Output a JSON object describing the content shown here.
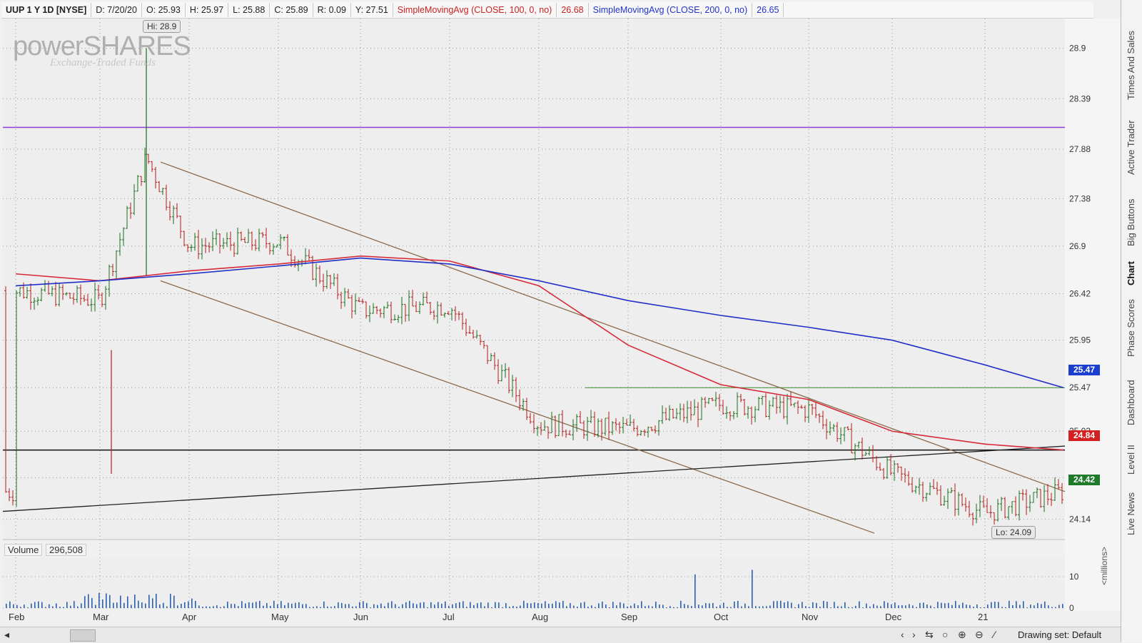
{
  "header": {
    "symbol": "UUP 1 Y 1D [NYSE]",
    "date": "D: 7/20/20",
    "open": "O: 25.93",
    "high": "H: 25.97",
    "low": "L: 25.88",
    "close": "C: 25.89",
    "range": "R: 0.09",
    "y": "Y: 27.51",
    "sma100_label": "SimpleMovingAvg (CLOSE, 100, 0, no)",
    "sma100_value": "26.68",
    "sma200_label": "SimpleMovingAvg (CLOSE, 200, 0, no)",
    "sma200_value": "26.65"
  },
  "watermark": {
    "brand": "powerSHARES",
    "subtitle": "Exchange-Traded Funds"
  },
  "annotations": {
    "hi": "Hi: 28.9",
    "lo": "Lo: 24.09"
  },
  "price_badges": [
    {
      "value": "25.47",
      "color": "#1a3ecf"
    },
    {
      "value": "24.84",
      "color": "#d42020"
    },
    {
      "value": "24.42",
      "color": "#1f7a2a"
    }
  ],
  "volume": {
    "label": "Volume",
    "value": "296,508",
    "unit": "<millions>"
  },
  "colors": {
    "sma100": "#d62a3a",
    "sma200": "#1f2fc8",
    "up": "#1a6e1a",
    "down": "#b41e1e",
    "resistance": "#8b3dd6",
    "trend": "#8a6a4a"
  },
  "chart_data": {
    "type": "line",
    "title": "UUP 1 Y 1D [NYSE]",
    "ylim": [
      23.95,
      29.2
    ],
    "y_ticks": [
      "28.9",
      "28.39",
      "27.88",
      "27.38",
      "26.9",
      "26.42",
      "25.95",
      "25.47",
      "25.03",
      "24.56",
      "24.14"
    ],
    "x_ticks": [
      "Feb",
      "Mar",
      "Apr",
      "May",
      "Jun",
      "Jul",
      "Aug",
      "Sep",
      "Oct",
      "Nov",
      "Dec",
      "21"
    ],
    "volume_ticks": [
      "10",
      "0"
    ],
    "series": [
      {
        "name": "SimpleMovingAvg (CLOSE, 100, 0, no)",
        "points": [
          [
            "Feb",
            26.62
          ],
          [
            "Mar",
            26.55
          ],
          [
            "Apr",
            26.65
          ],
          [
            "May",
            26.72
          ],
          [
            "Jun",
            26.8
          ],
          [
            "Jul",
            26.75
          ],
          [
            "Aug",
            26.5
          ],
          [
            "Sep",
            25.9
          ],
          [
            "Oct",
            25.5
          ],
          [
            "Nov",
            25.35
          ],
          [
            "Dec",
            25.03
          ],
          [
            "21",
            24.9
          ],
          [
            "end",
            24.84
          ]
        ]
      },
      {
        "name": "SimpleMovingAvg (CLOSE, 200, 0, no)",
        "points": [
          [
            "Feb",
            26.5
          ],
          [
            "Mar",
            26.55
          ],
          [
            "Apr",
            26.62
          ],
          [
            "May",
            26.7
          ],
          [
            "Jun",
            26.78
          ],
          [
            "Jul",
            26.72
          ],
          [
            "Aug",
            26.55
          ],
          [
            "Sep",
            26.35
          ],
          [
            "Oct",
            26.2
          ],
          [
            "Nov",
            26.08
          ],
          [
            "Dec",
            25.95
          ],
          [
            "21",
            25.7
          ],
          [
            "end",
            25.47
          ]
        ]
      },
      {
        "name": "Close",
        "points": [
          [
            "Feb",
            26.45
          ],
          [
            "Mar",
            26.35
          ],
          [
            "Mar-15",
            27.8
          ],
          [
            "Apr",
            26.9
          ],
          [
            "May",
            26.95
          ],
          [
            "Jun",
            26.25
          ],
          [
            "Jul",
            26.3
          ],
          [
            "Aug",
            25.1
          ],
          [
            "Sep",
            25.05
          ],
          [
            "Oct",
            25.3
          ],
          [
            "Nov",
            25.25
          ],
          [
            "Dec",
            24.6
          ],
          [
            "21",
            24.2
          ],
          [
            "end",
            24.42
          ]
        ]
      }
    ],
    "horizontal_lines": [
      28.1,
      25.47,
      24.84
    ],
    "hi": 28.9,
    "lo": 24.09
  },
  "bottom": {
    "drawing_set": "Drawing set: Default"
  },
  "right_tabs": [
    "Times And Sales",
    "Active Trader",
    "Big Buttons",
    "Chart",
    "Phase Scores",
    "Dashboard",
    "Level II",
    "Live News"
  ]
}
